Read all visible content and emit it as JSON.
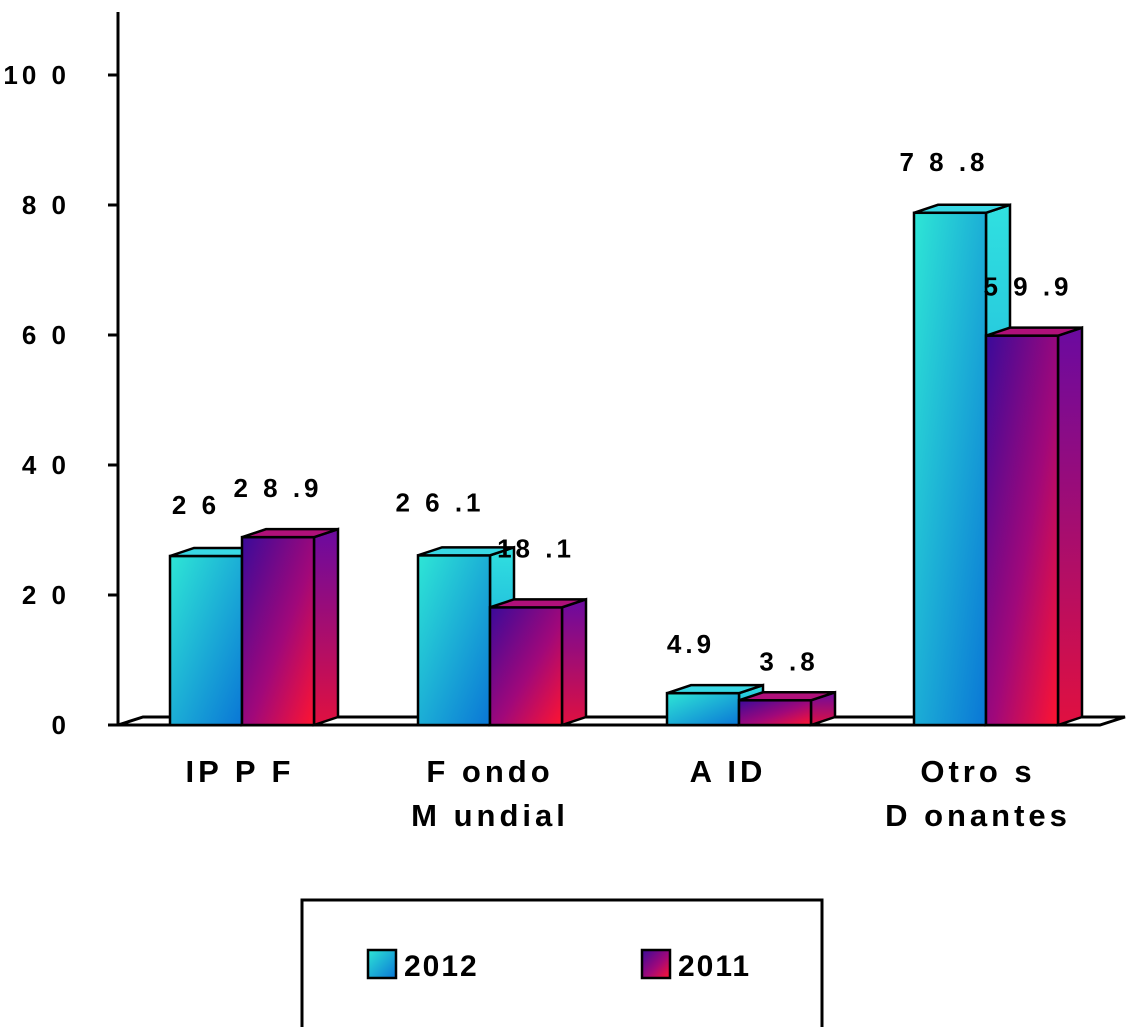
{
  "chart_data": {
    "type": "bar",
    "categories": [
      "IP P F",
      "F ondo\nM undial",
      "A ID",
      "Otro s\nD onantes"
    ],
    "series": [
      {
        "name": "2012",
        "values": [
          26,
          26.1,
          4.9,
          78.8
        ],
        "labels": [
          "2 6",
          "2 6 .1",
          "4.9",
          "7 8 .8"
        ]
      },
      {
        "name": "2011",
        "values": [
          28.9,
          18.1,
          3.8,
          59.9
        ],
        "labels": [
          "2 8 .9",
          "18 .1",
          "3 .8",
          "5 9 .9"
        ]
      }
    ],
    "yticks": [
      "0",
      "2 0",
      "4 0",
      "6 0",
      "8 0",
      "10 0"
    ],
    "ylim": [
      0,
      110
    ],
    "legend_labels": [
      "2012",
      "2011"
    ],
    "legend_placement": "bottom-center",
    "grid": false,
    "bar_style": "3d",
    "colors": {
      "2012_light": "#2ee6d6",
      "2012_dark": "#0a76d6",
      "2011_light": "#3a0a9a",
      "2011_dark": "#ff1430"
    }
  }
}
